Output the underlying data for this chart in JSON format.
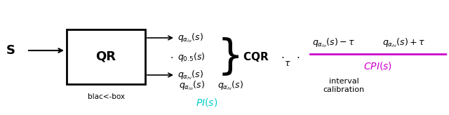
{
  "figsize": [
    6.4,
    1.64
  ],
  "dpi": 100,
  "bg_color": "#ffffff",
  "black": "#000000",
  "magenta": "#cc00cc",
  "cyan": "#00cccc",
  "box_label": "QR",
  "black_box_label": "blac<-box",
  "S_label": "$\\mathbf{S}$",
  "q_lo_label": "$q_{\\alpha_{lo}}(s)$",
  "q_05_label": "$q_{0.5}(s)$",
  "q_hi_label": "$q_{\\alpha_{hi}}(s)$",
  "CQR_label": "\\textbf{CQR}",
  "tau_label": "$\\tau$",
  "frac_numer_left": "$q_{\\alpha_{lo}}(s) - \\tau$",
  "frac_numer_right": "$q_{\\alpha_{hi}}(s) + \\tau$",
  "CPI_label": "$CPI(s)$",
  "interval_calib": "interval\ncalibration",
  "q_lo_bottom": "$q_{\\alpha_{lo}}(s)$",
  "q_hi_bottom": "$q_{\\alpha_{hi}}(s)$",
  "PI_label": "$PI(s)$",
  "dot": "$\\cdot$"
}
